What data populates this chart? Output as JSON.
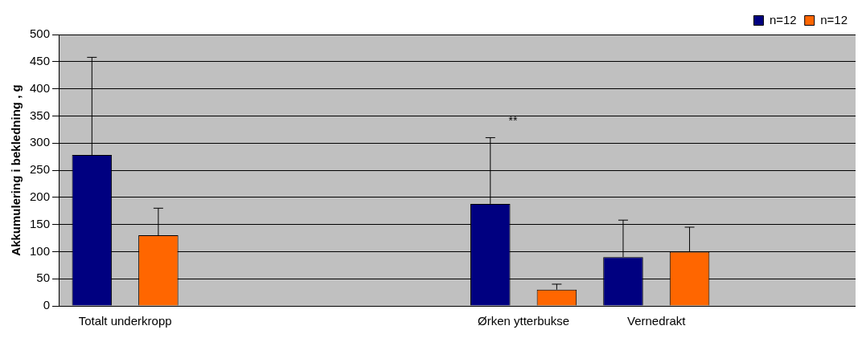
{
  "chart_data": {
    "type": "bar",
    "ylabel": "Akkumulering i bekledning , g",
    "categories": [
      "Totalt underkropp",
      null,
      null,
      "Ørken ytterbukse",
      "Vernedrakt",
      null
    ],
    "series": [
      {
        "name": "n=12",
        "color": "#000080",
        "values": [
          278,
          null,
          null,
          188,
          90,
          null
        ],
        "errors": [
          [
            278,
            458
          ],
          null,
          null,
          [
            188,
            310
          ],
          [
            90,
            158
          ],
          null
        ]
      },
      {
        "name": "n=12",
        "color": "#ff6600",
        "values": [
          130,
          null,
          null,
          30,
          100,
          null
        ],
        "errors": [
          [
            130,
            180
          ],
          null,
          null,
          [
            30,
            40
          ],
          [
            100,
            145
          ],
          null
        ]
      }
    ],
    "ylim": [
      0,
      500
    ],
    "yticks": [
      0,
      50,
      100,
      150,
      200,
      250,
      300,
      350,
      400,
      450,
      500
    ],
    "grid": "y",
    "legend": "top right",
    "annotations": [
      "**"
    ]
  }
}
